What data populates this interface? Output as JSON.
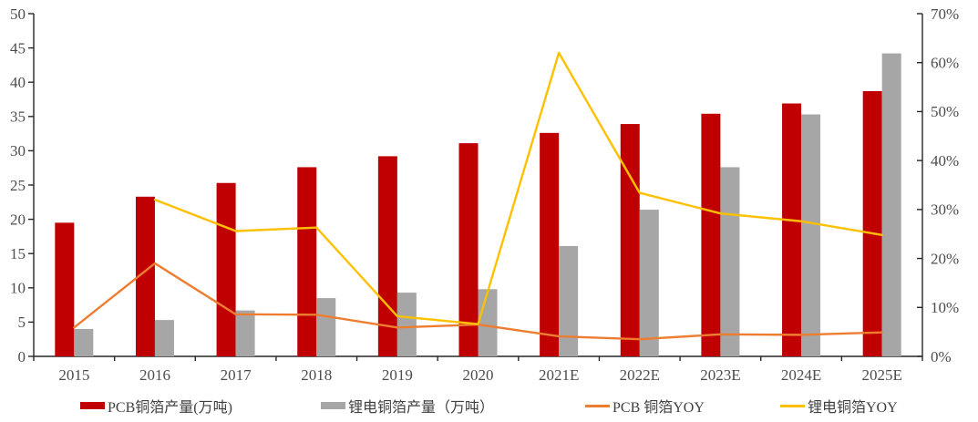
{
  "chart_data": {
    "type": "combo-bar-line",
    "title": "",
    "categories": [
      "2015",
      "2016",
      "2017",
      "2018",
      "2019",
      "2020",
      "2021E",
      "2022E",
      "2023E",
      "2024E",
      "2025E"
    ],
    "series": [
      {
        "name": "PCB铜箔产量(万吨)",
        "type": "bar",
        "axis": "left",
        "color": "#c00000",
        "values": [
          19.5,
          23.3,
          25.3,
          27.6,
          29.2,
          31.1,
          32.6,
          33.9,
          35.4,
          36.9,
          38.7
        ]
      },
      {
        "name": "锂电铜箔产量（万吨）",
        "type": "bar",
        "axis": "left",
        "color": "#a6a6a6",
        "values": [
          4.0,
          5.3,
          6.7,
          8.5,
          9.3,
          9.8,
          16.1,
          21.4,
          27.6,
          35.3,
          44.2
        ]
      },
      {
        "name": "PCB 铜箔YOY",
        "type": "line",
        "axis": "right",
        "color": "#ed7d31",
        "values": [
          5.9,
          19.0,
          8.6,
          8.5,
          5.9,
          6.5,
          4.1,
          3.5,
          4.5,
          4.4,
          4.9
        ]
      },
      {
        "name": "锂电铜箔YOY",
        "type": "line",
        "axis": "right",
        "color": "#ffc000",
        "values": [
          null,
          32.0,
          25.6,
          26.3,
          8.2,
          6.6,
          62.0,
          33.4,
          29.2,
          27.6,
          24.8
        ]
      }
    ],
    "left_axis": {
      "min": 0,
      "max": 50,
      "step": 5,
      "labels": [
        "0",
        "5",
        "10",
        "15",
        "20",
        "25",
        "30",
        "35",
        "40",
        "45",
        "50"
      ]
    },
    "right_axis": {
      "min": 0,
      "max": 70,
      "step": 10,
      "labels": [
        "0%",
        "10%",
        "20%",
        "30%",
        "40%",
        "50%",
        "60%",
        "70%"
      ]
    },
    "grid": "off",
    "legend_position": "bottom"
  },
  "style": {
    "axis_color": "#262626",
    "label_color": "#4d4d4d",
    "background": "#ffffff"
  }
}
